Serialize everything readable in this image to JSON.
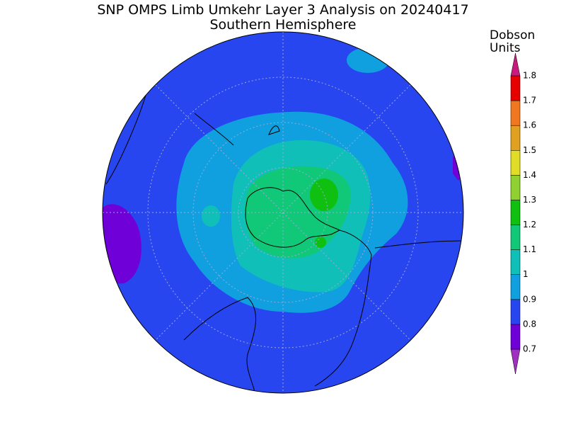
{
  "header": {
    "title": "SNP OMPS Limb Umkehr Layer 3 Analysis on 20240417",
    "subtitle": "Southern Hemisphere"
  },
  "colorbar": {
    "label_line1": "Dobson",
    "label_line2": "Units",
    "levels": [
      0.7,
      0.8,
      0.9,
      1,
      1.1,
      1.2,
      1.3,
      1.4,
      1.5,
      1.6,
      1.7,
      1.8
    ],
    "colors": [
      "#a030c0",
      "#7000d8",
      "#2846f0",
      "#10a0e0",
      "#10c0b8",
      "#10c878",
      "#10c010",
      "#90d030",
      "#e0dc28",
      "#e0a020",
      "#f07820",
      "#e60000",
      "#c8197d"
    ]
  }
}
